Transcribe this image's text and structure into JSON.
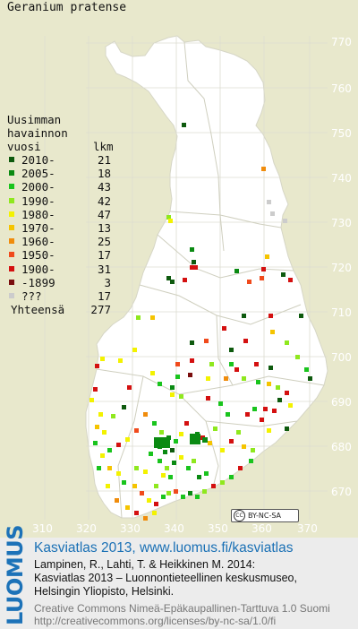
{
  "map": {
    "species": "Geranium pratense",
    "y_labels": [
      "770",
      "760",
      "750",
      "740",
      "730",
      "720",
      "710",
      "700",
      "690",
      "680",
      "670"
    ],
    "x_labels": [
      "310",
      "320",
      "330",
      "340",
      "350",
      "360",
      "370"
    ],
    "license_badge": "BY-NC-SA",
    "license_badge_logo": "CC",
    "colors": {
      "background": "#e8e8cc",
      "land": "#ffffff",
      "grid": "#d8d8c8",
      "border": "#cfcfbf"
    }
  },
  "legend": {
    "title_line1": "Uusimman",
    "title_line2": "havainnon",
    "col_year": "vuosi",
    "col_count": "lkm",
    "rows": [
      {
        "label": "2010-",
        "count": "21",
        "color": "#0e5a0e"
      },
      {
        "label": "2005-",
        "count": "18",
        "color": "#0a8a12"
      },
      {
        "label": "2000-",
        "count": "43",
        "color": "#19c41d"
      },
      {
        "label": "1990-",
        "count": "42",
        "color": "#8fe81e"
      },
      {
        "label": "1980-",
        "count": "47",
        "color": "#f3f200"
      },
      {
        "label": "1970-",
        "count": "13",
        "color": "#f5c400"
      },
      {
        "label": "1960-",
        "count": "25",
        "color": "#f08c0c"
      },
      {
        "label": "1950-",
        "count": "17",
        "color": "#f04a1c"
      },
      {
        "label": "1900-",
        "count": "31",
        "color": "#d41010"
      },
      {
        "label": "-1899",
        "count": "3",
        "color": "#7a0e0e"
      },
      {
        "label": "???",
        "count": "17",
        "color": "#cccccc"
      }
    ],
    "total_label": "Yhteensä",
    "total_count": "277"
  },
  "footer": {
    "logo": "LUOMUS",
    "title": "Kasviatlas 2013, www.luomus.fi/kasviatlas",
    "citation_line1": "Lampinen, R., Lahti, T. & Heikkinen M. 2014:",
    "citation_line2": "Kasviatlas 2013 – Luonnontieteellinen keskusmuseo,",
    "citation_line3": "Helsingin Yliopisto, Helsinki.",
    "license_line1": "Creative Commons Nimeä-Epäkaupallinen-Tarttuva 1.0 Suomi",
    "license_line2": "http://creativecommons.org/licenses/by-nc-sa/1.0/fi",
    "colors": {
      "brand_blue": "#1c72b8"
    }
  }
}
